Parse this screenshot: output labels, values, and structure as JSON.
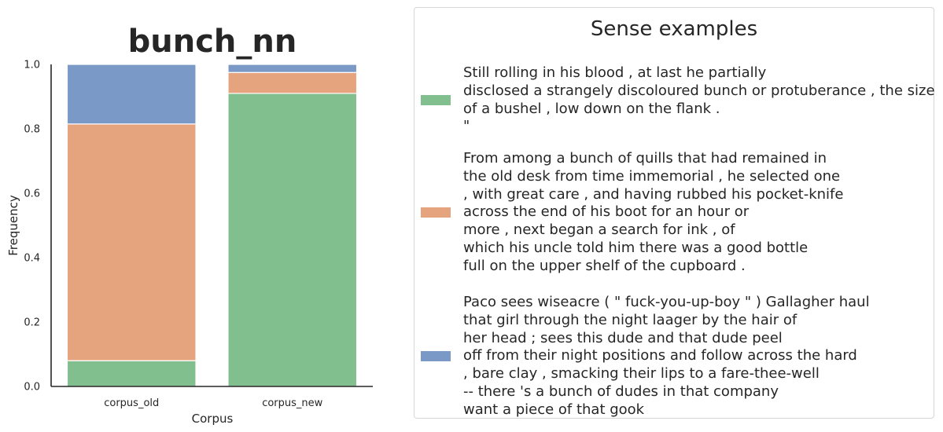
{
  "chart_data": {
    "type": "bar",
    "stacked": true,
    "title": "bunch_nn",
    "xlabel": "Corpus",
    "ylabel": "Frequency",
    "ylim": [
      0,
      1.0
    ],
    "yticks": [
      "0.0",
      "0.2",
      "0.4",
      "0.6",
      "0.8",
      "1.0"
    ],
    "categories": [
      "corpus_old",
      "corpus_new"
    ],
    "series": [
      {
        "color": "#81bf8e",
        "values": [
          0.08,
          0.91
        ]
      },
      {
        "color": "#e5a47d",
        "values": [
          0.735,
          0.065
        ]
      },
      {
        "color": "#7b99c7",
        "values": [
          0.185,
          0.025
        ]
      }
    ],
    "grid": false,
    "legend_position": "right"
  },
  "legend": {
    "title": "Sense examples",
    "entries": [
      {
        "color": "#81bf8e",
        "lines": [
          "Still rolling in his blood , at last he partially",
          "disclosed a strangely discoloured bunch or protuberance , the size",
          "of a bushel , low down on the flank .",
          "\""
        ]
      },
      {
        "color": "#e5a47d",
        "lines": [
          "From among a bunch of quills that had remained in",
          "the old desk from time immemorial , he selected one",
          ", with great care , and having rubbed his pocket-knife",
          "across the end of his boot for an hour or",
          "more , next began a search for ink , of",
          "which his uncle told him there was a good bottle",
          "full on the upper shelf of the cupboard ."
        ]
      },
      {
        "color": "#7b99c7",
        "lines": [
          "Paco sees wiseacre ( \" fuck-you-up-boy \" ) Gallagher haul",
          "that girl through the night laager by the hair of",
          "her head ; sees this dude and that dude peel",
          "off from their night positions and follow across the hard",
          ", bare clay , smacking their lips to a fare-thee-well",
          "-- there 's a bunch of dudes in that company",
          "want a piece of that gook"
        ]
      }
    ]
  }
}
